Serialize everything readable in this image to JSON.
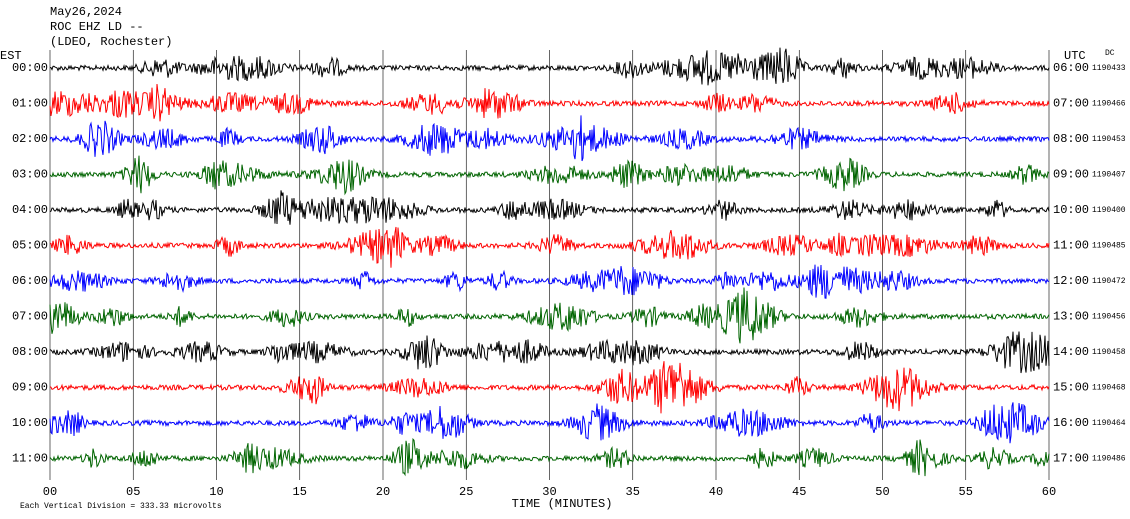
{
  "chart_data": {
    "type": "helicorder",
    "title_lines": [
      "May26,2024",
      "ROC EHZ LD --",
      "(LDEO, Rochester)"
    ],
    "left_axis_label": "EST",
    "right_axis_label": "UTC",
    "dc_label": "DC",
    "x_label": "TIME (MINUTES)",
    "scale_note": "Each Vertical Division =  333.33 microvolts",
    "xlim": [
      0,
      60
    ],
    "xticks": [
      {
        "value": 0,
        "label": "00"
      },
      {
        "value": 5,
        "label": "05"
      },
      10,
      15,
      20,
      25,
      30,
      35,
      40,
      45,
      50,
      55,
      60
    ],
    "rows": [
      {
        "est": "00:00",
        "utc": "06:00",
        "dc": 1190433,
        "color": "#000000"
      },
      {
        "est": "01:00",
        "utc": "07:00",
        "dc": 1190466,
        "color": "#ff0000"
      },
      {
        "est": "02:00",
        "utc": "08:00",
        "dc": 1190453,
        "color": "#0000ff"
      },
      {
        "est": "03:00",
        "utc": "09:00",
        "dc": 1190407,
        "color": "#006400"
      },
      {
        "est": "04:00",
        "utc": "10:00",
        "dc": 1190400,
        "color": "#000000"
      },
      {
        "est": "05:00",
        "utc": "11:00",
        "dc": 1190485,
        "color": "#ff0000"
      },
      {
        "est": "06:00",
        "utc": "12:00",
        "dc": 1190472,
        "color": "#0000ff"
      },
      {
        "est": "07:00",
        "utc": "13:00",
        "dc": 1190456,
        "color": "#006400"
      },
      {
        "est": "08:00",
        "utc": "14:00",
        "dc": 1190458,
        "color": "#000000"
      },
      {
        "est": "09:00",
        "utc": "15:00",
        "dc": 1190468,
        "color": "#ff0000"
      },
      {
        "est": "10:00",
        "utc": "16:00",
        "dc": 1190464,
        "color": "#0000ff"
      },
      {
        "est": "11:00",
        "utc": "17:00",
        "dc": 1190486,
        "color": "#006400"
      }
    ]
  }
}
